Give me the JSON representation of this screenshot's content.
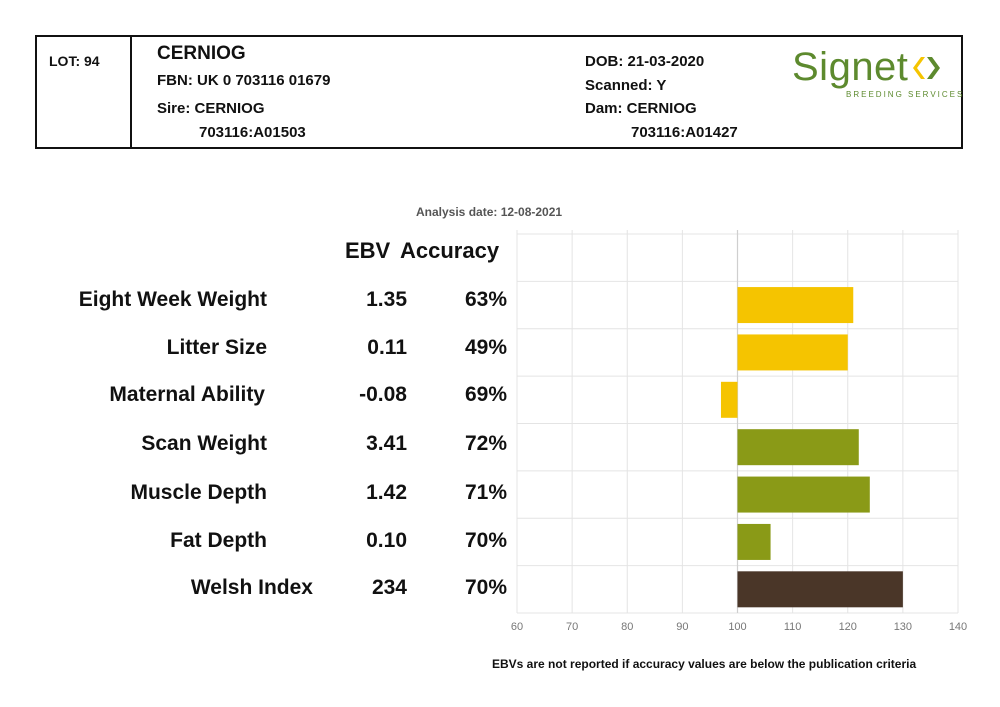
{
  "header": {
    "lot": "LOT: 94",
    "name": "CERNIOG",
    "fbn": "FBN: UK 0 703116 01679",
    "sire": "Sire: CERNIOG",
    "sire_id": "703116:A01503",
    "dob": "DOB: 21-03-2020",
    "scanned": "Scanned: Y",
    "dam": "Dam: CERNIOG",
    "dam_id": "703116:A01427",
    "logo_word": "Signet",
    "logo_sub": "BREEDING SERVICES",
    "logo_color": "#5d8a2e"
  },
  "analysis_date": "Analysis date: 12-08-2021",
  "columns": {
    "ebv": "EBV",
    "accuracy": "Accuracy"
  },
  "rows": [
    {
      "label": "Eight Week Weight",
      "ebv": "1.35",
      "accuracy": "63%"
    },
    {
      "label": "Litter Size",
      "ebv": "0.11",
      "accuracy": "49%"
    },
    {
      "label": "Maternal Ability",
      "ebv": "-0.08",
      "accuracy": "69%"
    },
    {
      "label": "Scan Weight",
      "ebv": "3.41",
      "accuracy": "72%"
    },
    {
      "label": "Muscle Depth",
      "ebv": "1.42",
      "accuracy": "71%"
    },
    {
      "label": "Fat Depth",
      "ebv": "0.10",
      "accuracy": "70%"
    },
    {
      "label": "Welsh Index",
      "ebv": "234",
      "accuracy": "70%"
    }
  ],
  "chart_data": {
    "type": "bar",
    "orientation": "horizontal",
    "baseline": 100,
    "categories": [
      "Eight Week Weight",
      "Litter Size",
      "Maternal Ability",
      "Scan Weight",
      "Muscle Depth",
      "Fat Depth",
      "Welsh Index"
    ],
    "values": [
      121,
      120,
      97,
      122,
      124,
      106,
      130
    ],
    "colors": [
      "#f5c400",
      "#f5c400",
      "#f5c400",
      "#8a9a17",
      "#8a9a17",
      "#8a9a17",
      "#4a3628"
    ],
    "xlim": [
      60,
      140
    ],
    "xticks": [
      60,
      70,
      80,
      90,
      100,
      110,
      120,
      130,
      140
    ],
    "grid": true
  },
  "footnote": "EBVs are not reported if accuracy values are below the publication criteria"
}
